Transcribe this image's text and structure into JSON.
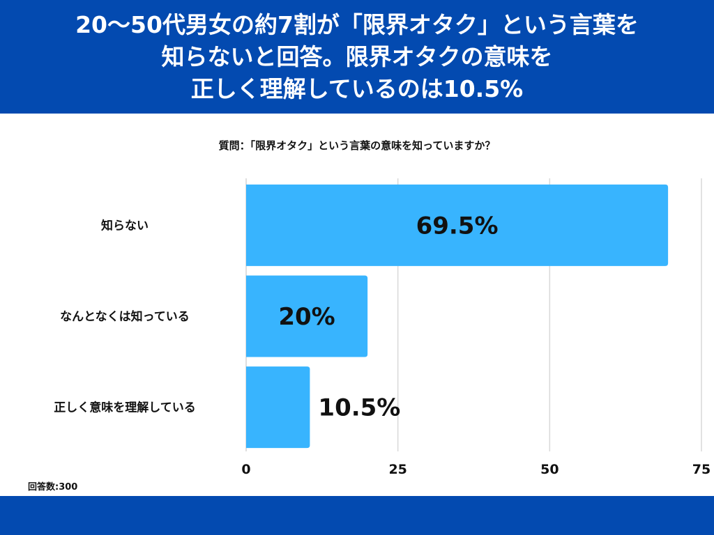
{
  "header": {
    "title_lines": [
      "20〜50代男女の約7割が「限界オタク」という言葉を",
      "知らないと回答。限界オタクの意味を",
      "正しく理解しているのは10.5%"
    ]
  },
  "footer": {
    "respondents": "回答数:300"
  },
  "chart_data": {
    "type": "bar",
    "orientation": "horizontal",
    "title": "質問：「限界オタク」という言葉の意味を知っていますか？",
    "categories": [
      "知らない",
      "なんとなくは知っている",
      "正しく意味を理解している"
    ],
    "values": [
      69.5,
      20,
      10.5
    ],
    "data_labels": [
      "69.5%",
      "20%",
      "10.5%"
    ],
    "xlim": [
      0,
      75
    ],
    "xticks": [
      0,
      25,
      50,
      75
    ],
    "xlabel": "",
    "ylabel": "",
    "grid": true,
    "colors": {
      "bar": "#38B4FE",
      "grid": "#D9D9D9",
      "header": "#034AB0"
    }
  }
}
